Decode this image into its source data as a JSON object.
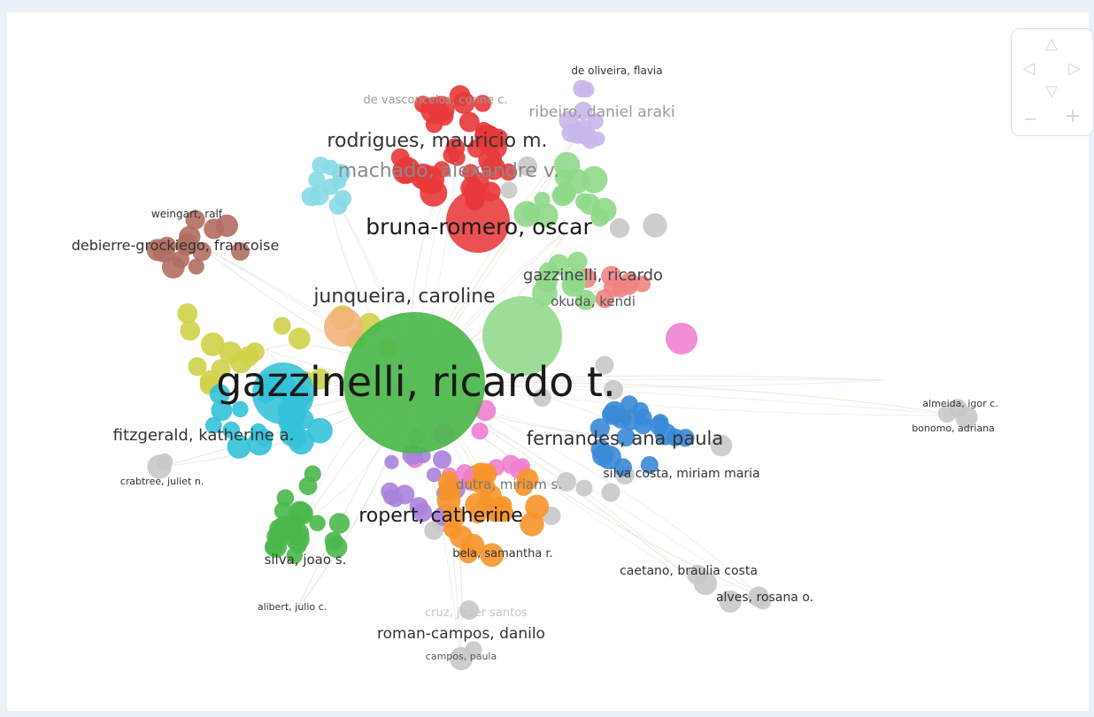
{
  "colors": {
    "page_bg": "#eaf1f7",
    "panel_bg": "#ffffff",
    "red": "#e8383a",
    "green": "#4bb74b",
    "light_green": "#8fd88a",
    "cyan": "#33c2d8",
    "light_cyan": "#86d9e6",
    "blue": "#3a88d6",
    "orange": "#f6952a",
    "yellow": "#cfd24a",
    "purple": "#a882db",
    "pink": "#ee7fd0",
    "brown": "#b06e63",
    "salmon": "#f08484",
    "gray": "#c8c8c8",
    "lavender": "#c7b6ea"
  },
  "navigation": {
    "up": "△",
    "left": "◁",
    "right": "▷",
    "down": "▽",
    "zoom_out": "−",
    "zoom_in": "+"
  },
  "clusters": [
    {
      "id": "red",
      "color": "red",
      "nodes": 36
    },
    {
      "id": "green-main",
      "color": "green",
      "nodes": 1
    },
    {
      "id": "light-green",
      "color": "light_green",
      "nodes": 22
    },
    {
      "id": "cyan",
      "color": "cyan",
      "nodes": 24
    },
    {
      "id": "light-cyan",
      "color": "light_cyan",
      "nodes": 10
    },
    {
      "id": "blue",
      "color": "blue",
      "nodes": 20
    },
    {
      "id": "orange",
      "color": "orange",
      "nodes": 26
    },
    {
      "id": "yellow",
      "color": "yellow",
      "nodes": 20
    },
    {
      "id": "purple",
      "color": "purple",
      "nodes": 14
    },
    {
      "id": "pink",
      "color": "pink",
      "nodes": 10
    },
    {
      "id": "brown",
      "color": "brown",
      "nodes": 14
    },
    {
      "id": "salmon",
      "color": "salmon",
      "nodes": 8
    },
    {
      "id": "green-lower",
      "color": "green",
      "nodes": 22
    },
    {
      "id": "lavender",
      "color": "lavender",
      "nodes": 12
    },
    {
      "id": "gray",
      "color": "gray",
      "nodes": 30
    }
  ],
  "labels": [
    {
      "id": "gazzinelli-ricardo-t",
      "text": "gazzinelli, ricardo t.",
      "color": "#1a1a1a",
      "level": "xl"
    },
    {
      "id": "bruna-romero-oscar",
      "text": "bruna-romero, oscar",
      "color": "#1a1a1a",
      "level": "l"
    },
    {
      "id": "rodrigues-mauricio-m",
      "text": "rodrigues, mauricio m.",
      "color": "#333333",
      "level": "l"
    },
    {
      "id": "machado-alexandre-v",
      "text": "machado, alexandre v.",
      "color": "#8a8a8a",
      "level": "l"
    },
    {
      "id": "junqueira-caroline",
      "text": "junqueira, caroline",
      "color": "#333333",
      "level": "l"
    },
    {
      "id": "fernandes-ana-paula",
      "text": "fernandes, ana paula",
      "color": "#333333",
      "level": "l"
    },
    {
      "id": "ropert-catherine",
      "text": "ropert, catherine",
      "color": "#1a1a1a",
      "level": "l"
    },
    {
      "id": "fitzgerald-katherine-a",
      "text": "fitzgerald, katherine a.",
      "color": "#333333",
      "level": "m"
    },
    {
      "id": "debierre-grockiego-francoise",
      "text": "debierre-grockiego, francoise",
      "color": "#333333",
      "level": "m"
    },
    {
      "id": "gazzinelli-ricardo",
      "text": "gazzinelli, ricardo",
      "color": "#444444",
      "level": "m"
    },
    {
      "id": "okuda-kendi",
      "text": "okuda, kendi",
      "color": "#555555",
      "level": "s"
    },
    {
      "id": "ribeiro-daniel-araki",
      "text": "ribeiro, daniel araki",
      "color": "#9a9a9a",
      "level": "m"
    },
    {
      "id": "de-vasconcelos-conne-c",
      "text": "de vasconcelos, conne c.",
      "color": "#9a9a9a",
      "level": "xs"
    },
    {
      "id": "de-oliveira-flavia",
      "text": "de oliveira, flavia",
      "color": "#333333",
      "level": "xs"
    },
    {
      "id": "weingart-ralf",
      "text": "weingart, ralf",
      "color": "#333333",
      "level": "xs"
    },
    {
      "id": "crabtree-juliet-n",
      "text": "crabtree, juliet n.",
      "color": "#333333",
      "level": "xs"
    },
    {
      "id": "silva-joao-s",
      "text": "silva, joao s.",
      "color": "#333333",
      "level": "s"
    },
    {
      "id": "alibert-julio-c",
      "text": "alibert, julio c.",
      "color": "#333333",
      "level": "xs"
    },
    {
      "id": "dutra-miriam-s",
      "text": "dutra, miriam s.",
      "color": "#777777",
      "level": "s"
    },
    {
      "id": "bela-samantha-r",
      "text": "bela, samantha r.",
      "color": "#333333",
      "level": "xs"
    },
    {
      "id": "silva-costa-miriam-maria",
      "text": "silva costa, miriam maria",
      "color": "#333333",
      "level": "xs"
    },
    {
      "id": "caetano-braulia-costa",
      "text": "caetano, braulia costa",
      "color": "#333333",
      "level": "xs"
    },
    {
      "id": "alves-rosana-o",
      "text": "alves, rosana o.",
      "color": "#333333",
      "level": "xs"
    },
    {
      "id": "almeida-igor-c",
      "text": "almeida, igor c.",
      "color": "#333333",
      "level": "xs"
    },
    {
      "id": "bonomo-adriana",
      "text": "bonomo, adriana",
      "color": "#333333",
      "level": "xs"
    },
    {
      "id": "cruz-jader-santos",
      "text": "cruz, jader santos",
      "color": "#c4c4c4",
      "level": "xs"
    },
    {
      "id": "roman-campos-danilo",
      "text": "roman-campos, danilo",
      "color": "#333333",
      "level": "s"
    },
    {
      "id": "campos-paula",
      "text": "campos, paula",
      "color": "#555555",
      "level": "xs"
    }
  ]
}
